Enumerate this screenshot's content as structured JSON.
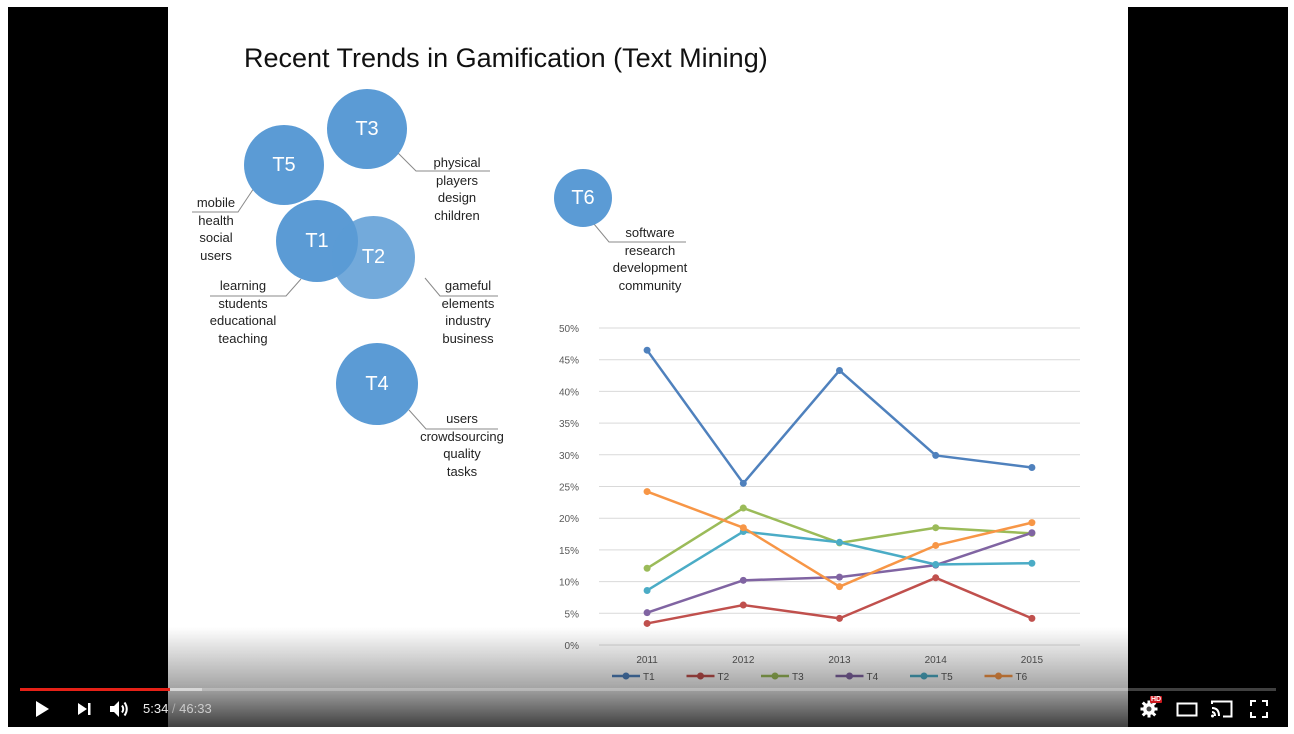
{
  "slide": {
    "title": "Recent Trends in Gamification (Text Mining)",
    "topics": [
      {
        "id": "T1",
        "words": [
          "learning",
          "students",
          "educational",
          "teaching"
        ]
      },
      {
        "id": "T2",
        "words": [
          "gameful",
          "elements",
          "industry",
          "business"
        ]
      },
      {
        "id": "T3",
        "words": [
          "physical",
          "players",
          "design",
          "children"
        ]
      },
      {
        "id": "T4",
        "words": [
          "users",
          "crowdsourcing",
          "quality",
          "tasks"
        ]
      },
      {
        "id": "T5",
        "words": [
          "mobile",
          "health",
          "social",
          "users"
        ]
      },
      {
        "id": "T6",
        "words": [
          "software",
          "research",
          "development",
          "community"
        ]
      }
    ],
    "bubble_color": "#5b9bd5"
  },
  "chart_data": {
    "type": "line",
    "categories": [
      "2011",
      "2012",
      "2013",
      "2014",
      "2015"
    ],
    "ylim": [
      0,
      50
    ],
    "ytick_labels": [
      "0%",
      "5%",
      "10%",
      "15%",
      "20%",
      "25%",
      "30%",
      "35%",
      "40%",
      "45%",
      "50%"
    ],
    "grid": true,
    "legend_position": "bottom",
    "series": [
      {
        "name": "T1",
        "color": "#4f81bd",
        "values": [
          46.5,
          25.5,
          43.3,
          29.9,
          28.0
        ]
      },
      {
        "name": "T2",
        "color": "#c0504d",
        "values": [
          3.4,
          6.3,
          4.2,
          10.6,
          4.2
        ]
      },
      {
        "name": "T3",
        "color": "#9bbb59",
        "values": [
          12.1,
          21.6,
          16.1,
          18.5,
          17.6
        ]
      },
      {
        "name": "T4",
        "color": "#8064a2",
        "values": [
          5.1,
          10.2,
          10.7,
          12.6,
          17.7
        ]
      },
      {
        "name": "T5",
        "color": "#4bacc6",
        "values": [
          8.6,
          17.9,
          16.2,
          12.7,
          12.9
        ]
      },
      {
        "name": "T6",
        "color": "#f79646",
        "values": [
          24.2,
          18.5,
          9.2,
          15.7,
          19.3
        ]
      }
    ]
  },
  "player": {
    "current_time": "5:34",
    "separator": " / ",
    "duration": "46:33",
    "played_fraction": 0.1196,
    "loaded_fraction": 0.145,
    "hd_badge": "HD",
    "progress_color": "#e62117",
    "controls": {
      "play": "play-icon",
      "next": "next-icon",
      "volume": "volume-icon",
      "settings": "gear-icon",
      "theater": "theater-mode-icon",
      "cast": "cast-icon",
      "fullscreen": "fullscreen-icon"
    }
  }
}
